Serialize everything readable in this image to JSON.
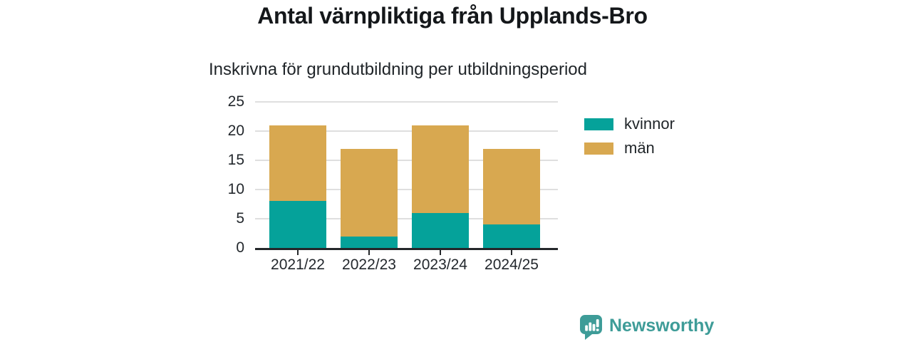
{
  "chart_data": {
    "type": "bar",
    "stacked": true,
    "title": "Antal värnpliktiga från Upplands-Bro",
    "subtitle": "Inskrivna för grundutbildning per utbildningsperiod",
    "categories": [
      "2021/22",
      "2022/23",
      "2023/24",
      "2024/25"
    ],
    "series": [
      {
        "name": "kvinnor",
        "color": "#05a29a",
        "values": [
          8,
          2,
          6,
          4
        ]
      },
      {
        "name": "män",
        "color": "#d8a850",
        "values": [
          13,
          15,
          15,
          13
        ]
      }
    ],
    "ylim": [
      0,
      25
    ],
    "yticks": [
      0,
      5,
      10,
      15,
      20,
      25
    ],
    "xlabel": "",
    "ylabel": "",
    "grid": "horizontal",
    "legend_position": "right"
  },
  "branding": {
    "name": "Newsworthy",
    "icon": "bar-chart-speech-bubble-icon",
    "color": "#3e9c98"
  },
  "colors": {
    "axis": "#24272a",
    "gridline": "#dfdfdf",
    "tick_text": "#23282d",
    "title_text": "#14171a"
  }
}
